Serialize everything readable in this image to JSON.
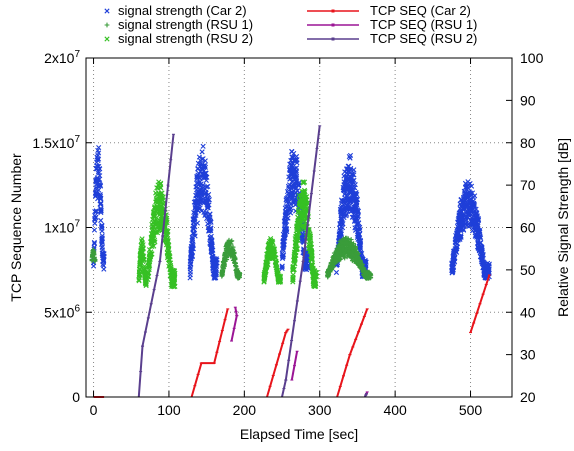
{
  "chart_data": {
    "type": "scatter",
    "xlabel": "Elapsed Time [sec]",
    "ylabel": "TCP Sequence Number",
    "y2label": "Relative Signal Strength [dB]",
    "xlim": [
      -10,
      555
    ],
    "ylim": [
      0,
      20000000
    ],
    "y2lim": [
      20,
      100
    ],
    "grid": true,
    "legend_position": "top",
    "x_ticks": [
      0,
      100,
      200,
      300,
      400,
      500
    ],
    "y_ticks": [
      0,
      5000000,
      10000000,
      15000000,
      20000000
    ],
    "y_tick_labels": [
      "0",
      "5x10^6",
      "1x10^7",
      "1.5x10^7",
      "2x10^7"
    ],
    "y2_ticks": [
      20,
      30,
      40,
      50,
      60,
      70,
      80,
      90,
      100
    ],
    "series": [
      {
        "name": "signal strength (Car 2)",
        "axis": "right",
        "marker": "x",
        "color": "#1f3fd8",
        "segments": [
          {
            "x_range": [
              0,
              14
            ],
            "y_range": [
              50,
              82
            ]
          },
          {
            "x_range": [
              128,
              164
            ],
            "y_range": [
              48,
              80
            ]
          },
          {
            "x_range": [
              250,
              285
            ],
            "y_range": [
              50,
              80
            ]
          },
          {
            "x_range": [
              322,
              362
            ],
            "y_range": [
              48,
              78
            ]
          },
          {
            "x_range": [
              475,
              525
            ],
            "y_range": [
              48,
              72
            ]
          }
        ]
      },
      {
        "name": "signal strength (RSU 1)",
        "axis": "right",
        "marker": "+",
        "color": "#3a9c3a",
        "segments": [
          {
            "x_range": [
              -2,
              2
            ],
            "y_range": [
              52,
              55
            ]
          },
          {
            "x_range": [
              170,
              194
            ],
            "y_range": [
              48,
              58
            ]
          },
          {
            "x_range": [
              310,
              368
            ],
            "y_range": [
              48,
              58
            ]
          }
        ]
      },
      {
        "name": "signal strength (RSU 2)",
        "axis": "right",
        "marker": "x",
        "color": "#36c024",
        "segments": [
          {
            "x_range": [
              60,
              70
            ],
            "y_range": [
              46,
              58
            ]
          },
          {
            "x_range": [
              72,
              108
            ],
            "y_range": [
              46,
              72
            ]
          },
          {
            "x_range": [
              226,
              248
            ],
            "y_range": [
              47,
              58
            ]
          },
          {
            "x_range": [
              264,
              296
            ],
            "y_range": [
              46,
              72
            ]
          }
        ]
      },
      {
        "name": "TCP SEQ (Car 2)",
        "axis": "left",
        "color": "#e8141b",
        "points": [
          [
            0,
            0
          ],
          [
            14,
            0
          ],
          [
            130,
            0
          ],
          [
            143,
            2000000
          ],
          [
            160,
            2000000
          ],
          [
            178,
            5200000
          ],
          [
            230,
            0
          ],
          [
            255,
            3800000
          ],
          [
            258,
            4000000
          ],
          [
            323,
            0
          ],
          [
            340,
            2500000
          ],
          [
            363,
            5200000
          ],
          [
            473,
            0
          ],
          [
            500,
            3800000
          ],
          [
            525,
            7200000
          ]
        ]
      },
      {
        "name": "TCP SEQ (RSU 1)",
        "axis": "left",
        "color": "#9b1595",
        "points": [
          [
            183,
            3300000
          ],
          [
            190,
            4800000
          ],
          [
            188,
            5300000
          ],
          [
            263,
            1000000
          ],
          [
            270,
            2700000
          ],
          [
            360,
            0
          ],
          [
            363,
            300000
          ]
        ]
      },
      {
        "name": "TCP SEQ (RSU 2)",
        "axis": "left",
        "color": "#5a3f8e",
        "points": [
          [
            60,
            0
          ],
          [
            65,
            3000000
          ],
          [
            88,
            8000000
          ],
          [
            106,
            15500000
          ],
          [
            250,
            0
          ],
          [
            255,
            1000000
          ],
          [
            278,
            8000000
          ],
          [
            300,
            16000000
          ],
          [
            360,
            0
          ],
          [
            362,
            200000
          ]
        ]
      }
    ]
  }
}
